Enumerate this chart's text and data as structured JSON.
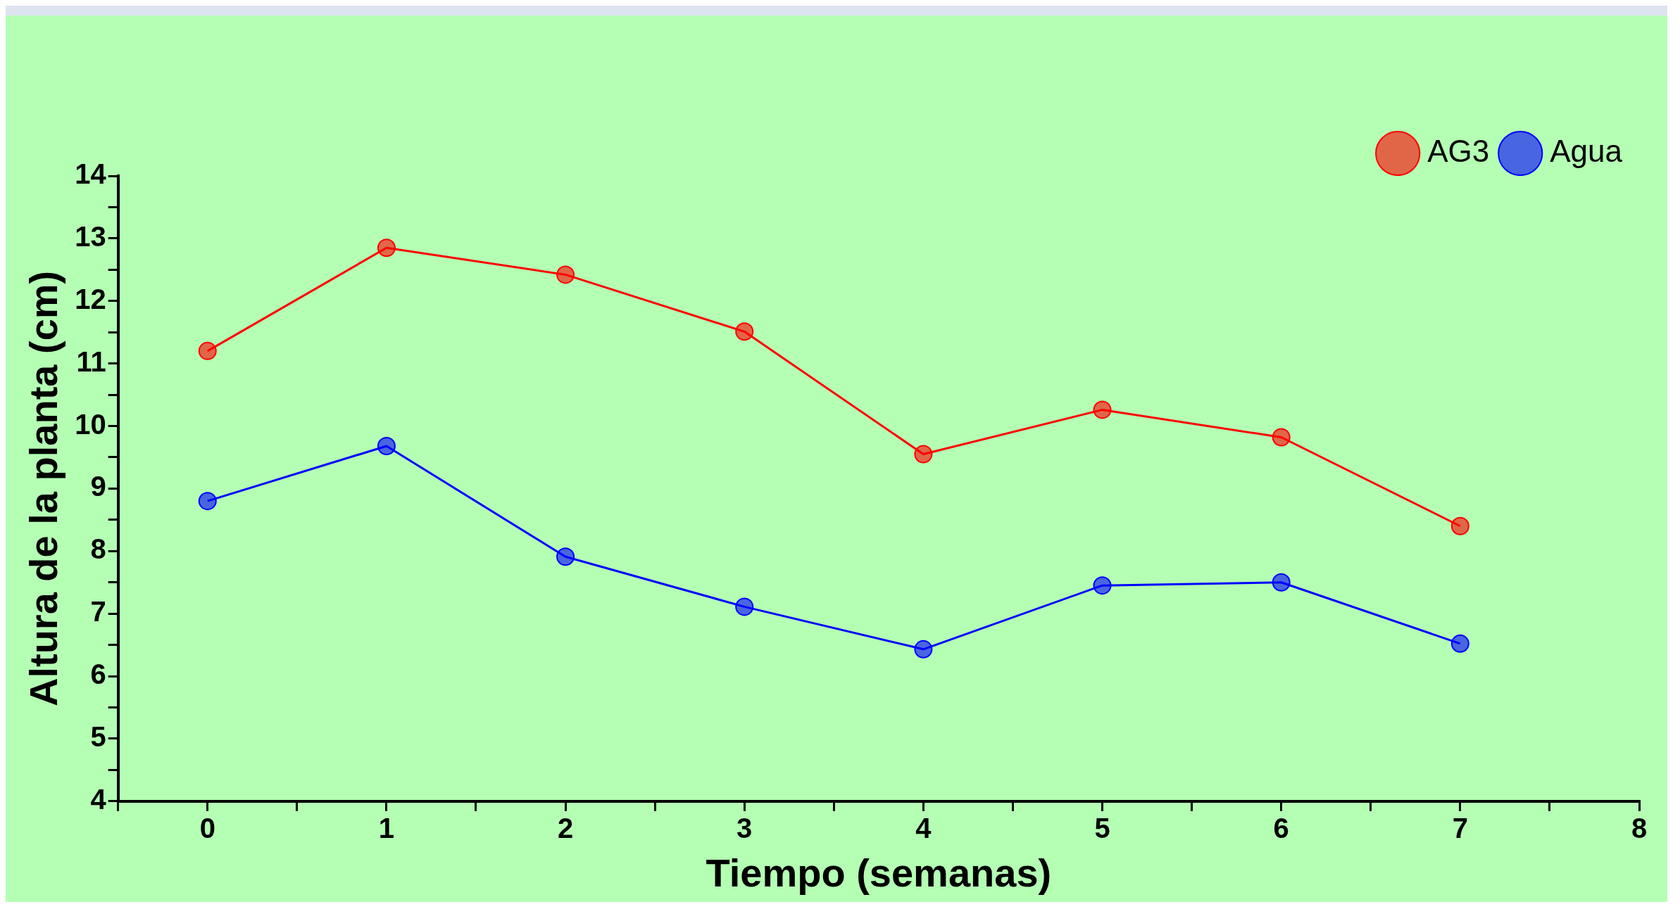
{
  "chart_data": {
    "type": "line",
    "xlabel": "Tiempo (semanas)",
    "ylabel": "Altura de la planta (cm)",
    "x": [
      0,
      1,
      2,
      3,
      4,
      5,
      6,
      7
    ],
    "series": [
      {
        "name": "AG3",
        "color": "#ff0000",
        "values": [
          11.2,
          12.85,
          12.42,
          11.51,
          9.55,
          10.26,
          9.82,
          8.4
        ]
      },
      {
        "name": "Agua",
        "color": "#0000ff",
        "values": [
          8.8,
          9.68,
          7.91,
          7.11,
          6.43,
          7.45,
          7.5,
          6.52
        ]
      }
    ],
    "xlim": [
      -0.5,
      8
    ],
    "xticks": [
      {
        "value": -0.5,
        "label": null
      },
      0,
      {
        "value": 0.5,
        "label": null
      },
      1,
      {
        "value": 1.5,
        "label": null
      },
      2,
      {
        "value": 2.5,
        "label": null
      },
      3,
      {
        "value": 3.5,
        "label": null
      },
      4,
      {
        "value": 4.5,
        "label": null
      },
      5,
      {
        "value": 5.5,
        "label": null
      },
      6,
      {
        "value": 6.5,
        "label": null
      },
      7,
      {
        "value": 7.5,
        "label": null
      },
      8
    ],
    "ylim": [
      4,
      14
    ],
    "yticks": [
      4,
      {
        "value": 4.5,
        "label": null
      },
      5,
      {
        "value": 5.5,
        "label": null
      },
      6,
      {
        "value": 6.5,
        "label": null
      },
      7,
      {
        "value": 7.5,
        "label": null
      },
      8,
      {
        "value": 8.5,
        "label": null
      },
      9,
      {
        "value": 9.5,
        "label": null
      },
      10,
      {
        "value": 10.5,
        "label": null
      },
      11,
      {
        "value": 11.5,
        "label": null
      },
      12,
      {
        "value": 12.5,
        "label": null
      },
      13,
      {
        "value": 13.5,
        "label": null
      },
      14
    ],
    "grid": false,
    "legend": "top right",
    "marker": "circle",
    "line_style": "solid"
  }
}
